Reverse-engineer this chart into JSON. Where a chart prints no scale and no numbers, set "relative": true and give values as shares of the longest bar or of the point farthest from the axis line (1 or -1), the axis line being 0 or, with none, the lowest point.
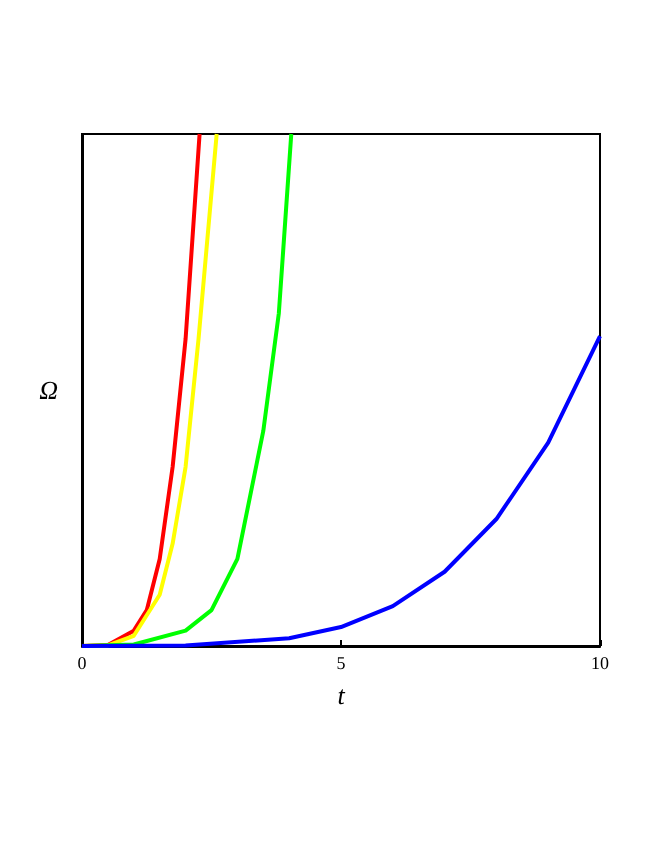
{
  "chart_data": {
    "type": "line",
    "xlabel": "t",
    "ylabel": "Ω",
    "xlim": [
      0,
      10
    ],
    "xticks": [
      0,
      5,
      10
    ],
    "relative": true,
    "tick_labels": "x",
    "grid": false,
    "marker": "none",
    "line_style": "solid",
    "series": [
      {
        "color": "#ff0000",
        "x": [
          0,
          0.5,
          1,
          1.25,
          1.5,
          1.75,
          2,
          2.27
        ],
        "values": [
          0,
          0.002,
          0.03,
          0.07,
          0.17,
          0.35,
          0.6,
          1
        ]
      },
      {
        "color": "#ffff00",
        "x": [
          0,
          0.5,
          1,
          1.5,
          1.75,
          2,
          2.25,
          2.6
        ],
        "values": [
          0,
          0.001,
          0.02,
          0.1,
          0.2,
          0.35,
          0.6,
          1
        ]
      },
      {
        "color": "#00ff00",
        "x": [
          0,
          1,
          2,
          2.5,
          3,
          3.5,
          3.8,
          4.04
        ],
        "values": [
          0,
          0.003,
          0.03,
          0.07,
          0.17,
          0.42,
          0.65,
          1
        ]
      },
      {
        "color": "#0000ff",
        "x": [
          0,
          2,
          4,
          5,
          6,
          7,
          8,
          9,
          10
        ],
        "values": [
          0,
          0.001,
          0.015,
          0.037,
          0.078,
          0.145,
          0.248,
          0.397,
          0.605
        ]
      }
    ]
  }
}
